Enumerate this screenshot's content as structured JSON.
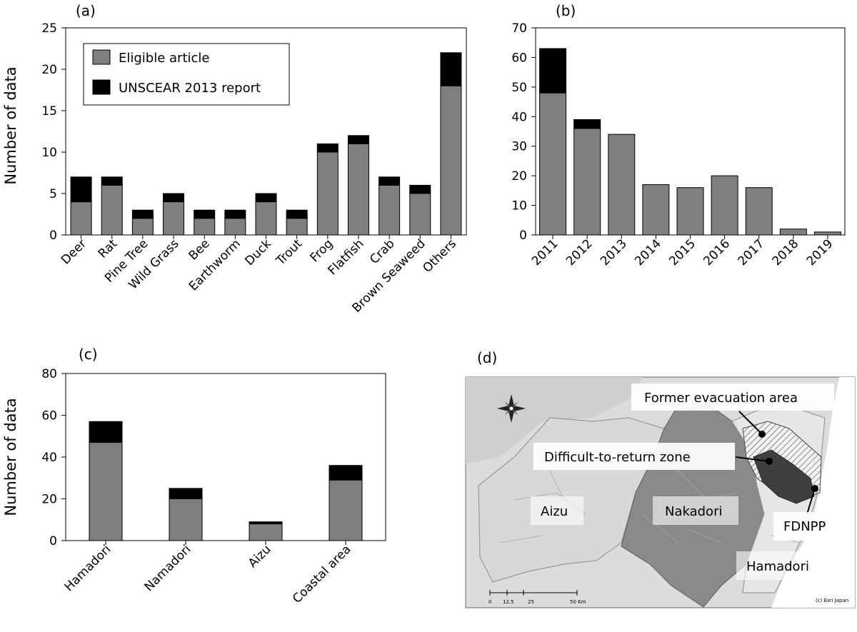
{
  "colors": {
    "eligible": "#7f7f7f",
    "unscear": "#000000"
  },
  "legend": {
    "eligible_label": "Eligible article",
    "unscear_label": "UNSCEAR 2013 report"
  },
  "chart_data": [
    {
      "panel": "(a)",
      "type": "bar",
      "stacked": true,
      "ylabel": "Number of data",
      "ylim": [
        0,
        25
      ],
      "yticks": [
        0,
        5,
        10,
        15,
        20,
        25
      ],
      "legend_position": "top-left",
      "categories": [
        "Deer",
        "Rat",
        "Pine Tree",
        "Wild Grass",
        "Bee",
        "Earthworm",
        "Duck",
        "Trout",
        "Frog",
        "Flatfish",
        "Crab",
        "Brown Seaweed",
        "Others"
      ],
      "series": [
        {
          "name": "Eligible article",
          "values": [
            4,
            6,
            2,
            4,
            2,
            2,
            4,
            2,
            10,
            11,
            6,
            5,
            18
          ]
        },
        {
          "name": "UNSCEAR 2013 report",
          "values": [
            3,
            1,
            1,
            1,
            1,
            1,
            1,
            1,
            1,
            1,
            1,
            1,
            4
          ]
        }
      ]
    },
    {
      "panel": "(b)",
      "type": "bar",
      "stacked": true,
      "ylabel": "",
      "ylim": [
        0,
        70
      ],
      "yticks": [
        0,
        10,
        20,
        30,
        40,
        50,
        60,
        70
      ],
      "categories": [
        "2011",
        "2012",
        "2013",
        "2014",
        "2015",
        "2016",
        "2017",
        "2018",
        "2019"
      ],
      "series": [
        {
          "name": "Eligible article",
          "values": [
            48,
            36,
            34,
            17,
            16,
            20,
            16,
            2,
            1
          ]
        },
        {
          "name": "UNSCEAR 2013 report",
          "values": [
            15,
            3,
            0,
            0,
            0,
            0,
            0,
            0,
            0
          ]
        }
      ]
    },
    {
      "panel": "(c)",
      "type": "bar",
      "stacked": true,
      "ylabel": "Number of data",
      "ylim": [
        0,
        80
      ],
      "yticks": [
        0,
        20,
        40,
        60,
        80
      ],
      "categories": [
        "Hamadori",
        "Namadori",
        "Aizu",
        "Coastal area"
      ],
      "series": [
        {
          "name": "Eligible article",
          "values": [
            47,
            20,
            8,
            29
          ]
        },
        {
          "name": "UNSCEAR 2013 report",
          "values": [
            10,
            5,
            1,
            7
          ]
        }
      ]
    }
  ],
  "map": {
    "panel": "(d)",
    "labels": {
      "former_evacuation": "Former evacuation area",
      "difficult_to_return": "Difficult-to-return  zone",
      "aizu": "Aizu",
      "nakadori": "Nakadori",
      "fdnpp": "FDNPP",
      "hamadori": "Hamadori"
    },
    "scale_ticks": [
      "0",
      "12.5",
      "25",
      "50 Km"
    ],
    "credit": "(c) Esri Japan",
    "compass_icon": "compass-rose-icon"
  }
}
